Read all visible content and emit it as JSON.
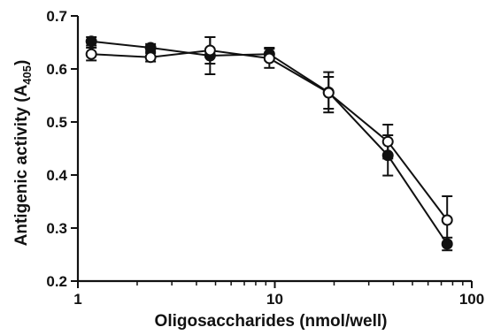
{
  "chart_data": {
    "type": "line",
    "title": "",
    "xlabel": "Oligosaccharides (nmol/well)",
    "ylabel": "Antigenic activity (A",
    "ylabel_subscript": "405",
    "ylabel_suffix": ")",
    "x_scale": "log",
    "xlim": [
      1,
      100
    ],
    "ylim": [
      0.2,
      0.7
    ],
    "x_ticks": [
      1,
      10,
      100
    ],
    "x_tick_labels": [
      "1",
      "10",
      "100"
    ],
    "y_ticks": [
      0.2,
      0.3,
      0.4,
      0.5,
      0.6,
      0.7
    ],
    "y_tick_labels": [
      "0.2",
      "0.3",
      "0.4",
      "0.5",
      "0.6",
      "0.7"
    ],
    "grid": false,
    "legend": "none",
    "series": [
      {
        "marker": "filled-circle",
        "color": "#111111",
        "x": [
          1.17,
          2.34,
          4.69,
          9.38,
          18.75,
          37.5,
          75
        ],
        "y": [
          0.652,
          0.64,
          0.625,
          0.628,
          0.556,
          0.437,
          0.27
        ],
        "err": [
          0.008,
          0.007,
          0.035,
          0.012,
          0.038,
          0.038,
          0.012
        ]
      },
      {
        "marker": "open-circle",
        "color": "#111111",
        "x": [
          1.17,
          2.34,
          4.69,
          9.38,
          18.75,
          37.5,
          75
        ],
        "y": [
          0.628,
          0.622,
          0.635,
          0.62,
          0.555,
          0.463,
          0.315
        ],
        "err": [
          0.012,
          0.008,
          0.025,
          0.018,
          0.03,
          0.032,
          0.045
        ]
      }
    ]
  }
}
